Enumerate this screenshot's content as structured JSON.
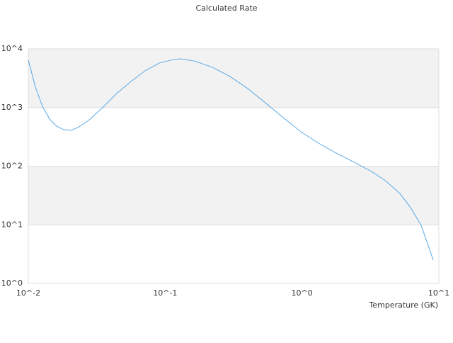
{
  "chart_data": {
    "type": "line",
    "title": "Calculated Rate",
    "x_label": "Temperature (GK)",
    "xscale": "log",
    "yscale": "log",
    "xlim": [
      0.01,
      10
    ],
    "ylim": [
      1,
      10000
    ],
    "xticks": [
      {
        "value": 0.01,
        "label": "10^-2"
      },
      {
        "value": 0.1,
        "label": "10^-1"
      },
      {
        "value": 1,
        "label": "10^0"
      },
      {
        "value": 10,
        "label": "10^1"
      }
    ],
    "yticks": [
      {
        "value": 1,
        "label": "10^0"
      },
      {
        "value": 10,
        "label": "10^1"
      },
      {
        "value": 100,
        "label": "10^2"
      },
      {
        "value": 1000,
        "label": "10^3"
      },
      {
        "value": 10000,
        "label": "10^4"
      }
    ],
    "band_color": "#f2f2f2",
    "grid": true,
    "series": [
      {
        "color": "#5aa9e6",
        "x": [
          0.01,
          0.01127,
          0.01269,
          0.01429,
          0.0161,
          0.01815,
          0.0204,
          0.023,
          0.0275,
          0.0349,
          0.0443,
          0.0562,
          0.0714,
          0.0906,
          0.115,
          0.129,
          0.164,
          0.221,
          0.298,
          0.402,
          0.541,
          0.728,
          0.981,
          1.32,
          1.78,
          2.4,
          3.23,
          4.1,
          5.2,
          6.22,
          7.43,
          9.1
        ],
        "values": [
          6450,
          2230,
          1050,
          640,
          480,
          420,
          410,
          455,
          600,
          1000,
          1740,
          2770,
          4250,
          5740,
          6600,
          6780,
          6200,
          4880,
          3380,
          2100,
          1200,
          675,
          387,
          247,
          167,
          117,
          81,
          56,
          34,
          19.6,
          9.8,
          2.5
        ]
      }
    ]
  }
}
